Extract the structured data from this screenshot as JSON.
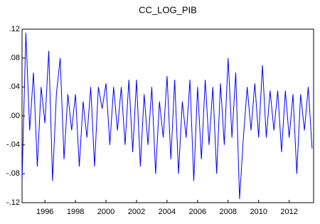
{
  "chart_data": {
    "type": "line",
    "title": "CC_LOG_PIB",
    "x": [
      1994.5,
      1994.75,
      1995,
      1995.25,
      1995.5,
      1995.75,
      1996,
      1996.25,
      1996.5,
      1996.75,
      1997,
      1997.25,
      1997.5,
      1997.75,
      1998,
      1998.25,
      1998.5,
      1998.75,
      1999,
      1999.25,
      1999.5,
      1999.75,
      2000,
      2000.25,
      2000.5,
      2000.75,
      2001,
      2001.25,
      2001.5,
      2001.75,
      2002,
      2002.25,
      2002.5,
      2002.75,
      2003,
      2003.25,
      2003.5,
      2003.75,
      2004,
      2004.25,
      2004.5,
      2004.75,
      2005,
      2005.25,
      2005.5,
      2005.75,
      2006,
      2006.25,
      2006.5,
      2006.75,
      2007,
      2007.25,
      2007.5,
      2007.75,
      2008,
      2008.25,
      2008.5,
      2008.75,
      2009,
      2009.25,
      2009.5,
      2009.75,
      2010,
      2010.25,
      2010.5,
      2010.75,
      2011,
      2011.25,
      2011.5,
      2011.75,
      2012,
      2012.25,
      2012.5,
      2012.75,
      2013,
      2013.25,
      2013.5
    ],
    "series": [
      {
        "name": "CC_LOG_PIB",
        "color": "#0000ff",
        "values": [
          -0.09,
          0.115,
          -0.02,
          0.06,
          -0.07,
          0.04,
          -0.01,
          0.09,
          -0.09,
          0.03,
          0.08,
          -0.06,
          0.03,
          -0.02,
          0.03,
          -0.07,
          0.02,
          -0.03,
          0.04,
          -0.07,
          0.04,
          0.01,
          0.045,
          -0.04,
          0.04,
          -0.02,
          0.04,
          -0.04,
          0.05,
          -0.05,
          0.05,
          -0.07,
          0.03,
          -0.04,
          0.04,
          -0.08,
          0.02,
          -0.03,
          0.055,
          -0.06,
          0.05,
          -0.08,
          0.02,
          -0.03,
          0.05,
          -0.09,
          0.04,
          -0.06,
          0.05,
          -0.04,
          0.04,
          -0.08,
          0.045,
          -0.04,
          0.08,
          -0.03,
          0.06,
          -0.115,
          -0.03,
          0.04,
          -0.02,
          0.045,
          -0.03,
          0.07,
          -0.03,
          0.035,
          -0.02,
          0.035,
          -0.05,
          0.035,
          -0.03,
          0.03,
          -0.08,
          0.03,
          -0.02,
          0.04,
          -0.045
        ]
      }
    ],
    "xlim": [
      1994.5,
      2013.6
    ],
    "xticks": [
      1996,
      1998,
      2000,
      2002,
      2004,
      2006,
      2008,
      2010,
      2012
    ],
    "ylim": [
      -0.12,
      0.12
    ],
    "yticks": [
      {
        "value": -0.12,
        "label": "-.12"
      },
      {
        "value": -0.08,
        "label": "-.08"
      },
      {
        "value": -0.04,
        "label": "-.04"
      },
      {
        "value": 0,
        "label": ".00"
      },
      {
        "value": 0.04,
        "label": ".04"
      },
      {
        "value": 0.08,
        "label": ".08"
      },
      {
        "value": 0.12,
        "label": ".12"
      }
    ]
  }
}
